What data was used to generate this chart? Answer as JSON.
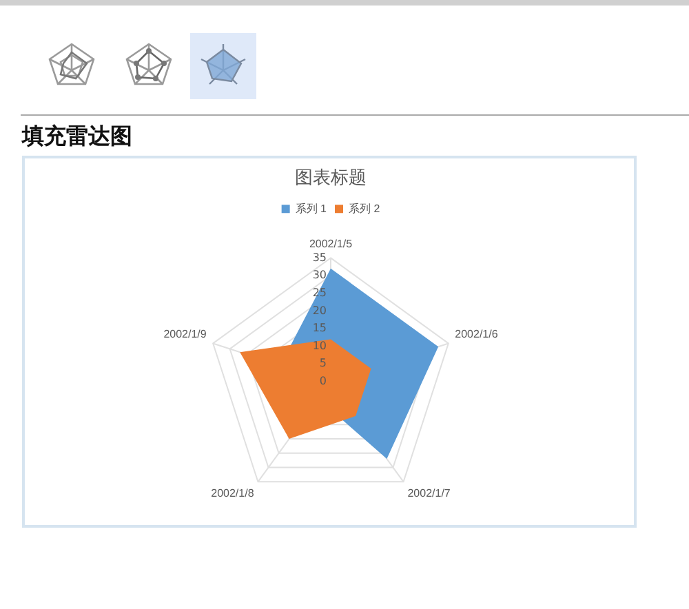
{
  "chart_data": {
    "type": "radar",
    "title": "图表标题",
    "annotations": [
      "填充雷达图"
    ],
    "categories": [
      "2002/1/5",
      "2002/1/6",
      "2002/1/7",
      "2002/1/8",
      "2002/1/9"
    ],
    "series": [
      {
        "name": "系列 1",
        "color": "#5b9bd5",
        "values": [
          32,
          32,
          27,
          null,
          15
        ]
      },
      {
        "name": "系列 2",
        "color": "#ed7d31",
        "values": [
          12,
          12,
          12,
          20,
          27
        ]
      }
    ],
    "ylim": [
      0,
      35
    ],
    "yticks": [
      0,
      5,
      10,
      15,
      20,
      25,
      30,
      35
    ],
    "grid": true,
    "legend": "top",
    "marker": "none"
  }
}
